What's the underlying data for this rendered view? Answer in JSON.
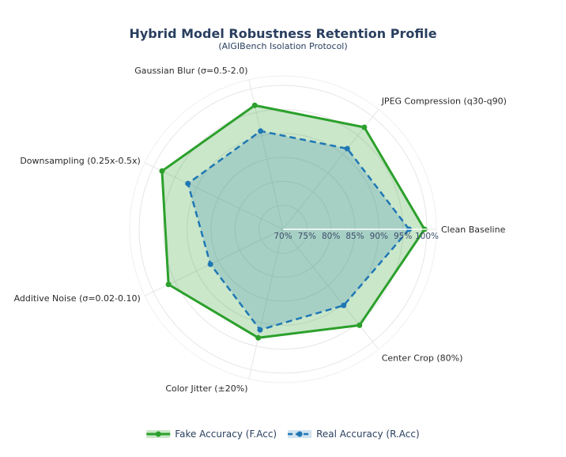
{
  "chart_data": {
    "type": "radar",
    "title": "Hybrid Model Robustness Retention Profile",
    "subtitle": "(AIGIBench Isolation Protocol)",
    "categories": [
      "Clean Baseline",
      "JPEG Compression (q30-q90)",
      "Gaussian Blur (σ=0.5-2.0)",
      "Downsampling (0.25x-0.5x)",
      "Additive Noise (σ=0.02-0.10)",
      "Color Jitter (±20%)",
      "Center Crop (80%)"
    ],
    "radial_axis": {
      "range": [
        70,
        100
      ],
      "tick_values": [
        70,
        75,
        80,
        85,
        90,
        95,
        100
      ],
      "tick_labels": [
        "70%",
        "75%",
        "80%",
        "85%",
        "90%",
        "95%",
        "100%"
      ]
    },
    "series": [
      {
        "name": "Fake Accuracy (F.Acc)",
        "values": [
          99.5,
          97.2,
          96.5,
          98.0,
          96.5,
          93.2,
          95.6
        ],
        "color": "#2ca02c",
        "fill": "rgba(44,160,44,0.25)",
        "line_style": "solid"
      },
      {
        "name": "Real Accuracy (R.Acc)",
        "values": [
          96.3,
          91.5,
          91.0,
          92.0,
          86.8,
          91.5,
          90.3
        ],
        "color": "#1f77b4",
        "fill": "rgba(31,119,180,0.20)",
        "line_style": "dashed"
      }
    ],
    "legend_position": "bottom-center",
    "grid": true
  }
}
